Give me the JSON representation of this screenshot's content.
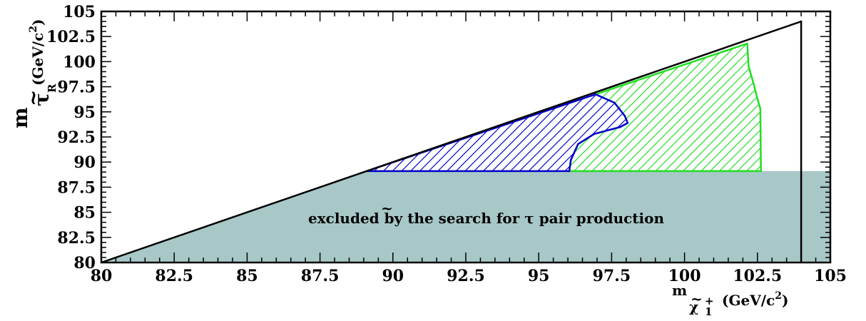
{
  "chart_data": {
    "type": "area",
    "xlim": [
      80,
      105
    ],
    "ylim": [
      80,
      105
    ],
    "x_ticks": [
      "80",
      "82.5",
      "85",
      "87.5",
      "90",
      "92.5",
      "95",
      "97.5",
      "100",
      "102.5",
      "105"
    ],
    "y_ticks": [
      "80",
      "82.5",
      "85",
      "87.5",
      "90",
      "92.5",
      "95",
      "97.5",
      "100",
      "102.5",
      "105"
    ],
    "xlabel": {
      "prefix": "m",
      "particle": "χ",
      "accent": "~",
      "sup": "+",
      "sub": "1",
      "unit": "(GeV/c",
      "unit_sup": "2",
      "unit_close": ")"
    },
    "ylabel": {
      "prefix": "m",
      "particle": "τ",
      "accent": "~",
      "sub": "R",
      "unit": "(GeV/c",
      "unit_sup": "2",
      "unit_close": ")"
    },
    "annotation": {
      "text_before": "excluded by the search for ",
      "symbol": "τ",
      "symbol_accent": "~",
      "text_after": " pair production"
    },
    "colors": {
      "blue": "#0000cc",
      "green": "#22dd22",
      "teal": "#a8c8c8",
      "frame": "#000000"
    },
    "regions": [
      {
        "id": "tau_pair_excluded",
        "fill": "solid",
        "polygon": [
          [
            80,
            80
          ],
          [
            89.1,
            89.1
          ],
          [
            105,
            89.1
          ],
          [
            105,
            80
          ]
        ]
      },
      {
        "id": "blue_excluded",
        "fill": "hatched",
        "polygon": [
          [
            89.1,
            89.1
          ],
          [
            96.95,
            96.75
          ],
          [
            97.6,
            95.9
          ],
          [
            97.95,
            94.6
          ],
          [
            98.05,
            93.9
          ],
          [
            97.8,
            93.5
          ],
          [
            96.9,
            92.8
          ],
          [
            96.35,
            91.8
          ],
          [
            96.1,
            90.2
          ],
          [
            96.05,
            89.1
          ]
        ]
      },
      {
        "id": "green_excluded",
        "fill": "hatched",
        "polygon": [
          [
            96.05,
            89.1
          ],
          [
            96.1,
            90.2
          ],
          [
            96.35,
            91.8
          ],
          [
            96.9,
            92.8
          ],
          [
            97.8,
            93.5
          ],
          [
            98.05,
            93.9
          ],
          [
            97.95,
            94.6
          ],
          [
            97.6,
            95.9
          ],
          [
            96.95,
            96.75
          ],
          [
            102.15,
            101.8
          ],
          [
            102.2,
            99.5
          ],
          [
            102.35,
            98.0
          ],
          [
            102.5,
            96.3
          ],
          [
            102.6,
            95.3
          ],
          [
            102.62,
            89.1
          ]
        ]
      }
    ],
    "kinematic_boundary": [
      [
        80,
        80
      ],
      [
        104,
        104
      ],
      [
        104,
        80
      ]
    ]
  }
}
